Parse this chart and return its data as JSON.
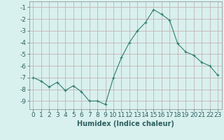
{
  "x": [
    0,
    1,
    2,
    3,
    4,
    5,
    6,
    7,
    8,
    9,
    10,
    11,
    12,
    13,
    14,
    15,
    16,
    17,
    18,
    19,
    20,
    21,
    22,
    23
  ],
  "y": [
    -7.0,
    -7.3,
    -7.8,
    -7.4,
    -8.1,
    -7.7,
    -8.2,
    -9.0,
    -9.0,
    -9.3,
    -7.0,
    -5.3,
    -4.0,
    -3.0,
    -2.3,
    -1.2,
    -1.6,
    -2.1,
    -4.1,
    -4.8,
    -5.1,
    -5.7,
    -6.0,
    -6.8
  ],
  "line_color": "#2e7d6e",
  "marker": "+",
  "marker_size": 3,
  "marker_linewidth": 0.8,
  "linewidth": 0.8,
  "bg_color": "#d8f0ee",
  "grid_color": "#c0a8a8",
  "xlabel": "Humidex (Indice chaleur)",
  "xlim": [
    -0.5,
    23.5
  ],
  "ylim": [
    -9.7,
    -0.5
  ],
  "yticks": [
    -9,
    -8,
    -7,
    -6,
    -5,
    -4,
    -3,
    -2,
    -1
  ],
  "xticks": [
    0,
    1,
    2,
    3,
    4,
    5,
    6,
    7,
    8,
    9,
    10,
    11,
    12,
    13,
    14,
    15,
    16,
    17,
    18,
    19,
    20,
    21,
    22,
    23
  ],
  "xlabel_fontsize": 7,
  "tick_fontsize": 6.5,
  "tick_color": "#2e6060"
}
